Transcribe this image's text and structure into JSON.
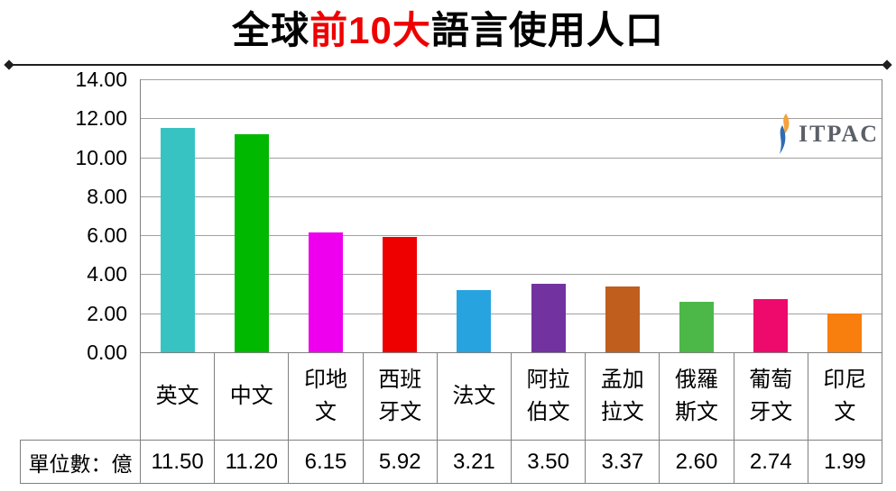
{
  "title": {
    "segments": [
      {
        "text": "全球",
        "color": "#000000"
      },
      {
        "text": "前10大",
        "color": "#EE0000"
      },
      {
        "text": "語言使用人口",
        "color": "#000000"
      }
    ]
  },
  "logo": {
    "text": "ITPAC",
    "text_color": "#5b6068",
    "flame_outer_color": "#F5A23C",
    "flame_inner_color": "#2E6DB4"
  },
  "chart_data": {
    "type": "bar",
    "title": "全球前10大語言使用人口",
    "unit_row_label": "單位數：億",
    "categories": [
      "英文",
      "中文",
      "印地文",
      "西班牙文",
      "法文",
      "阿拉伯文",
      "孟加拉文",
      "俄羅斯文",
      "葡萄牙文",
      "印尼文"
    ],
    "category_lines": [
      [
        "英文"
      ],
      [
        "中文"
      ],
      [
        "印地",
        "文"
      ],
      [
        "西班",
        "牙文"
      ],
      [
        "法文"
      ],
      [
        "阿拉",
        "伯文"
      ],
      [
        "孟加",
        "拉文"
      ],
      [
        "俄羅",
        "斯文"
      ],
      [
        "葡萄",
        "牙文"
      ],
      [
        "印尼",
        "文"
      ]
    ],
    "values": [
      11.5,
      11.2,
      6.15,
      5.92,
      3.21,
      3.5,
      3.37,
      2.6,
      2.74,
      1.99
    ],
    "value_labels": [
      "11.50",
      "11.20",
      "6.15",
      "5.92",
      "3.21",
      "3.50",
      "3.37",
      "2.60",
      "2.74",
      "1.99"
    ],
    "bar_colors": [
      "#38C3C3",
      "#00B800",
      "#EE00EE",
      "#EE0000",
      "#27A4DF",
      "#7233A1",
      "#C05E1E",
      "#4CB848",
      "#EE0A6C",
      "#F87E0D"
    ],
    "ylim": [
      0,
      14
    ],
    "ytick_step": 2,
    "ytick_labels": [
      "0.00",
      "2.00",
      "4.00",
      "6.00",
      "8.00",
      "10.00",
      "12.00",
      "14.00"
    ],
    "grid": true,
    "legend": "none",
    "gridline_color": "#a0a0a0"
  }
}
